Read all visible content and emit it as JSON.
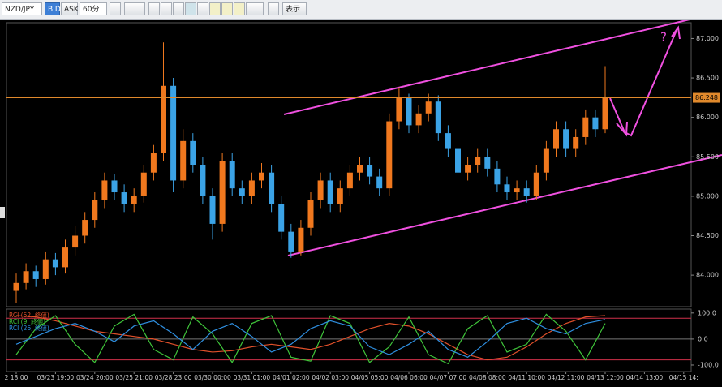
{
  "toolbar": {
    "symbol": "NZD/JPY",
    "bid": "BID",
    "ask": "ASK",
    "timeframe": "60分",
    "view": "表示"
  },
  "chart_data": [
    {
      "type": "candlestick",
      "x_labels": [
        "2 18:00",
        "03/23 19:00",
        "03/24 20:00",
        "03/25 21:00",
        "03/28 23:00",
        "03/30 00:00",
        "03/31 01:00",
        "04/01 02:00",
        "04/02 03:00",
        "04/05 05:00",
        "04/06 06:00",
        "04/07 07:00",
        "04/08 08:00",
        "04/11 10:00",
        "04/12 11:00",
        "04/13 12:00",
        "04/14 13:00",
        "04/15 14:"
      ],
      "open": [
        83.8,
        83.9,
        84.05,
        83.95,
        84.2,
        84.1,
        84.35,
        84.5,
        84.7,
        84.95,
        85.2,
        85.05,
        84.9,
        85.0,
        85.3,
        85.55,
        86.4,
        85.2,
        85.7,
        85.4,
        85.0,
        84.65,
        85.45,
        85.1,
        85.0,
        85.2,
        85.3,
        84.9,
        84.55,
        84.3,
        84.6,
        84.95,
        85.2,
        84.9,
        85.1,
        85.3,
        85.4,
        85.25,
        85.1,
        85.95,
        86.25,
        85.9,
        86.05,
        86.2,
        85.8,
        85.6,
        85.3,
        85.4,
        85.5,
        85.35,
        85.15,
        85.05,
        85.1,
        85.0,
        85.3,
        85.6,
        85.85,
        85.6,
        85.75,
        86.0,
        85.85
      ],
      "high": [
        84.02,
        84.15,
        84.12,
        84.3,
        84.28,
        84.45,
        84.62,
        84.8,
        85.05,
        85.3,
        85.28,
        85.15,
        85.1,
        85.4,
        85.65,
        86.95,
        86.5,
        85.85,
        85.8,
        85.5,
        85.1,
        85.55,
        85.55,
        85.2,
        85.3,
        85.42,
        85.4,
        85.0,
        84.65,
        84.7,
        85.05,
        85.3,
        85.3,
        85.2,
        85.4,
        85.5,
        85.5,
        85.35,
        86.05,
        86.38,
        86.3,
        86.15,
        86.3,
        86.28,
        85.9,
        85.7,
        85.5,
        85.6,
        85.6,
        85.45,
        85.25,
        85.2,
        85.2,
        85.4,
        85.7,
        85.95,
        85.95,
        85.85,
        86.1,
        86.1,
        86.65
      ],
      "low": [
        83.65,
        83.82,
        83.85,
        83.88,
        84.0,
        84.02,
        84.25,
        84.4,
        84.6,
        84.85,
        84.95,
        84.8,
        84.8,
        84.92,
        85.2,
        85.45,
        85.05,
        85.1,
        85.3,
        84.9,
        84.45,
        84.55,
        85.0,
        84.9,
        84.9,
        85.1,
        84.8,
        84.45,
        84.22,
        84.25,
        84.5,
        84.85,
        84.8,
        84.8,
        85.0,
        85.2,
        85.15,
        85.0,
        85.0,
        85.85,
        85.8,
        85.8,
        85.95,
        85.7,
        85.5,
        85.2,
        85.2,
        85.3,
        85.25,
        85.05,
        84.95,
        84.95,
        84.92,
        84.95,
        85.2,
        85.5,
        85.5,
        85.5,
        85.65,
        85.75,
        85.8
      ],
      "close": [
        83.9,
        84.05,
        83.95,
        84.2,
        84.1,
        84.35,
        84.5,
        84.7,
        84.95,
        85.2,
        85.05,
        84.9,
        85.0,
        85.3,
        85.55,
        86.4,
        85.2,
        85.7,
        85.4,
        85.0,
        84.65,
        85.45,
        85.1,
        85.0,
        85.2,
        85.3,
        84.9,
        84.55,
        84.3,
        84.6,
        84.95,
        85.2,
        84.9,
        85.1,
        85.3,
        85.4,
        85.25,
        85.1,
        85.95,
        86.25,
        85.9,
        86.05,
        86.2,
        85.8,
        85.6,
        85.3,
        85.4,
        85.5,
        85.35,
        85.15,
        85.05,
        85.1,
        85.0,
        85.3,
        85.6,
        85.85,
        85.6,
        85.75,
        86.0,
        85.85,
        86.25
      ],
      "up_color": "#f0781e",
      "down_color": "#3ba3e6",
      "ylim": [
        83.6,
        87.2
      ],
      "yticks": [
        {
          "value": 84,
          "label": "84.000"
        },
        {
          "value": 84.5,
          "label": "84.500"
        },
        {
          "value": 85,
          "label": "85.000"
        },
        {
          "value": 85.5,
          "label": "85.500"
        },
        {
          "value": 86,
          "label": "86.000"
        },
        {
          "value": 86.5,
          "label": "86.500"
        },
        {
          "value": 87,
          "label": "87.000"
        }
      ],
      "current_price": 86.248,
      "current_price_color": "#e0892c",
      "annotation": "?"
    },
    {
      "type": "line",
      "series": [
        {
          "name": "RCI (52, 終値)",
          "color": "#e0502a",
          "values": [
            90,
            85,
            70,
            50,
            30,
            20,
            10,
            0,
            -20,
            -40,
            -50,
            -45,
            -30,
            -20,
            -30,
            -40,
            -20,
            10,
            40,
            60,
            50,
            20,
            -20,
            -60,
            -80,
            -70,
            -30,
            20,
            60,
            85,
            90
          ]
        },
        {
          "name": "RCI (9, 終値)",
          "color": "#3fc43a",
          "values": [
            -60,
            40,
            90,
            -20,
            -90,
            50,
            95,
            -40,
            -80,
            85,
            20,
            -90,
            60,
            90,
            -70,
            -85,
            90,
            60,
            -90,
            -30,
            85,
            -60,
            -95,
            40,
            90,
            -50,
            -20,
            95,
            30,
            -80,
            60
          ]
        },
        {
          "name": "RCI (26, 終値)",
          "color": "#2f8fe0",
          "values": [
            -20,
            10,
            40,
            60,
            30,
            -10,
            50,
            70,
            20,
            -40,
            30,
            60,
            10,
            -50,
            -20,
            40,
            70,
            50,
            -30,
            -60,
            -20,
            30,
            -40,
            -70,
            -10,
            60,
            80,
            40,
            20,
            60,
            75
          ]
        }
      ],
      "ylim": [
        -125,
        115
      ],
      "yticks": [
        {
          "value": 100,
          "label": "100.0"
        },
        {
          "value": 0,
          "label": "0.0"
        },
        {
          "value": -100,
          "label": "-100.0"
        }
      ],
      "bands": [
        80,
        -80
      ],
      "band_color": "#d0304a"
    }
  ]
}
